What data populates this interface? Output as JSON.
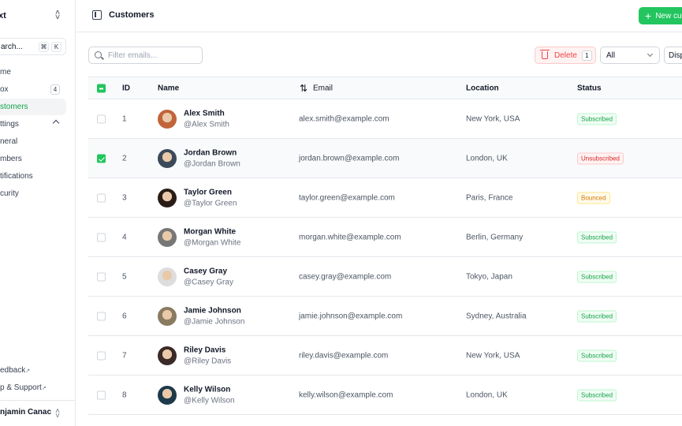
{
  "sidebar": {
    "team": "xt",
    "search": "arch...",
    "kbd": [
      "⌘",
      "K"
    ],
    "items": [
      {
        "label": "me"
      },
      {
        "label": "ox",
        "badge": "4"
      },
      {
        "label": "stomers",
        "active": true
      },
      {
        "label": "ttings"
      },
      {
        "label": "neral"
      },
      {
        "label": "mbers"
      },
      {
        "label": "tifications"
      },
      {
        "label": "curity"
      }
    ],
    "footer_links": [
      "edback",
      "p & Support"
    ],
    "user": "njamin Canac"
  },
  "header": {
    "title": "Customers",
    "new_button": "New cu"
  },
  "toolbar": {
    "filter_placeholder": "Filter emails...",
    "delete_label": "Delete",
    "delete_count": "1",
    "status_filter": "All",
    "display": "Disp"
  },
  "table": {
    "headers": {
      "id": "ID",
      "name": "Name",
      "email": "Email",
      "location": "Location",
      "status": "Status"
    },
    "rows": [
      {
        "id": "1",
        "name": "Alex Smith",
        "handle": "@Alex Smith",
        "email": "alex.smith@example.com",
        "location": "New York, USA",
        "status": "Subscribed",
        "checked": false
      },
      {
        "id": "2",
        "name": "Jordan Brown",
        "handle": "@Jordan Brown",
        "email": "jordan.brown@example.com",
        "location": "London, UK",
        "status": "Unsubscribed",
        "checked": true
      },
      {
        "id": "3",
        "name": "Taylor Green",
        "handle": "@Taylor Green",
        "email": "taylor.green@example.com",
        "location": "Paris, France",
        "status": "Bounced",
        "checked": false
      },
      {
        "id": "4",
        "name": "Morgan White",
        "handle": "@Morgan White",
        "email": "morgan.white@example.com",
        "location": "Berlin, Germany",
        "status": "Subscribed",
        "checked": false
      },
      {
        "id": "5",
        "name": "Casey Gray",
        "handle": "@Casey Gray",
        "email": "casey.gray@example.com",
        "location": "Tokyo, Japan",
        "status": "Subscribed",
        "checked": false
      },
      {
        "id": "6",
        "name": "Jamie Johnson",
        "handle": "@Jamie Johnson",
        "email": "jamie.johnson@example.com",
        "location": "Sydney, Australia",
        "status": "Subscribed",
        "checked": false
      },
      {
        "id": "7",
        "name": "Riley Davis",
        "handle": "@Riley Davis",
        "email": "riley.davis@example.com",
        "location": "New York, USA",
        "status": "Subscribed",
        "checked": false
      },
      {
        "id": "8",
        "name": "Kelly Wilson",
        "handle": "@Kelly Wilson",
        "email": "kelly.wilson@example.com",
        "location": "London, UK",
        "status": "Subscribed",
        "checked": false
      }
    ]
  },
  "colors": {
    "accent": "#22c55e",
    "Subscribed": [
      "#16a34a",
      "#f0fdf4",
      "#bbf7d0"
    ],
    "Unsubscribed": [
      "#dc2626",
      "#fef2f2",
      "#fecaca"
    ],
    "Bounced": [
      "#d97706",
      "#fffbeb",
      "#fde68a"
    ]
  }
}
